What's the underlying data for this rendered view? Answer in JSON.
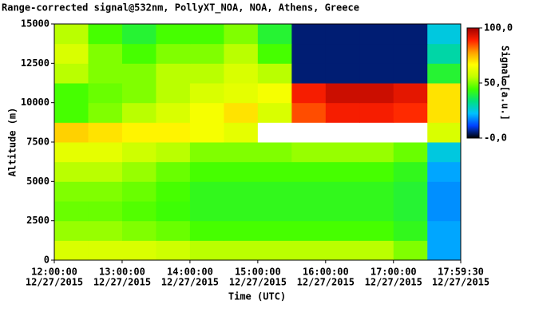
{
  "chart_data": {
    "type": "heatmap",
    "title": "Range-corrected signal@532nm, PollyXT_NOA, NOA, Athens, Greece",
    "xlabel": "Time (UTC)",
    "ylabel": "Altitude (m)",
    "colorbar_label": "Signal [a.u.]",
    "xlim": [
      12,
      17.9917
    ],
    "ylim": [
      0,
      15000
    ],
    "xticks": [
      {
        "value": 12,
        "label": "12:00:00",
        "date": "12/27/2015"
      },
      {
        "value": 13,
        "label": "13:00:00",
        "date": "12/27/2015"
      },
      {
        "value": 14,
        "label": "14:00:00",
        "date": "12/27/2015"
      },
      {
        "value": 15,
        "label": "15:00:00",
        "date": "12/27/2015"
      },
      {
        "value": 16,
        "label": "16:00:00",
        "date": "12/27/2015"
      },
      {
        "value": 17,
        "label": "17:00:00",
        "date": "12/27/2015"
      },
      {
        "value": 17.9917,
        "label": "17:59:30",
        "date": "12/27/2015"
      }
    ],
    "yticks": [
      0,
      2500,
      5000,
      7500,
      10000,
      12500,
      15000
    ],
    "xbins": [
      12,
      12.5,
      13,
      13.5,
      14,
      14.5,
      15,
      15.5,
      16,
      16.5,
      17,
      17.5,
      17.9917
    ],
    "ybins": [
      0,
      1250,
      2500,
      3750,
      5000,
      6250,
      7500,
      8750,
      10000,
      11250,
      12500,
      13750,
      15000
    ],
    "values": [
      [
        60,
        60,
        60,
        58,
        55,
        55,
        55,
        55,
        55,
        55,
        50,
        20
      ],
      [
        52,
        52,
        50,
        48,
        45,
        45,
        45,
        45,
        45,
        45,
        42,
        20
      ],
      [
        48,
        48,
        46,
        44,
        42,
        42,
        42,
        42,
        42,
        42,
        40,
        18
      ],
      [
        50,
        50,
        48,
        45,
        42,
        42,
        42,
        42,
        42,
        42,
        40,
        18
      ],
      [
        55,
        55,
        52,
        48,
        45,
        45,
        45,
        45,
        45,
        45,
        42,
        20
      ],
      [
        62,
        62,
        58,
        55,
        50,
        50,
        50,
        52,
        52,
        52,
        48,
        25
      ],
      [
        72,
        70,
        68,
        68,
        65,
        62,
        null,
        null,
        null,
        null,
        null,
        60
      ],
      [
        45,
        50,
        55,
        60,
        65,
        70,
        60,
        85,
        90,
        90,
        88,
        70
      ],
      [
        45,
        48,
        50,
        55,
        60,
        62,
        65,
        90,
        95,
        95,
        92,
        70
      ],
      [
        55,
        50,
        50,
        55,
        55,
        60,
        55,
        5,
        5,
        5,
        5,
        40
      ],
      [
        60,
        50,
        45,
        50,
        50,
        55,
        45,
        5,
        5,
        5,
        5,
        30
      ],
      [
        55,
        45,
        40,
        45,
        45,
        50,
        40,
        5,
        5,
        5,
        5,
        25
      ]
    ],
    "clim": [
      0,
      100
    ],
    "cticks": [
      {
        "value": 100,
        "label": "100,0"
      },
      {
        "value": 50,
        "label": "50,0"
      },
      {
        "value": 0,
        "label": "-0,0"
      }
    ],
    "colormap": [
      "#000000",
      "#0040ff",
      "#00c0ff",
      "#00e080",
      "#40ff00",
      "#c0ff00",
      "#ffff00",
      "#ffa000",
      "#ff2000",
      "#a00000"
    ],
    "missing_color": "#ffffff"
  }
}
